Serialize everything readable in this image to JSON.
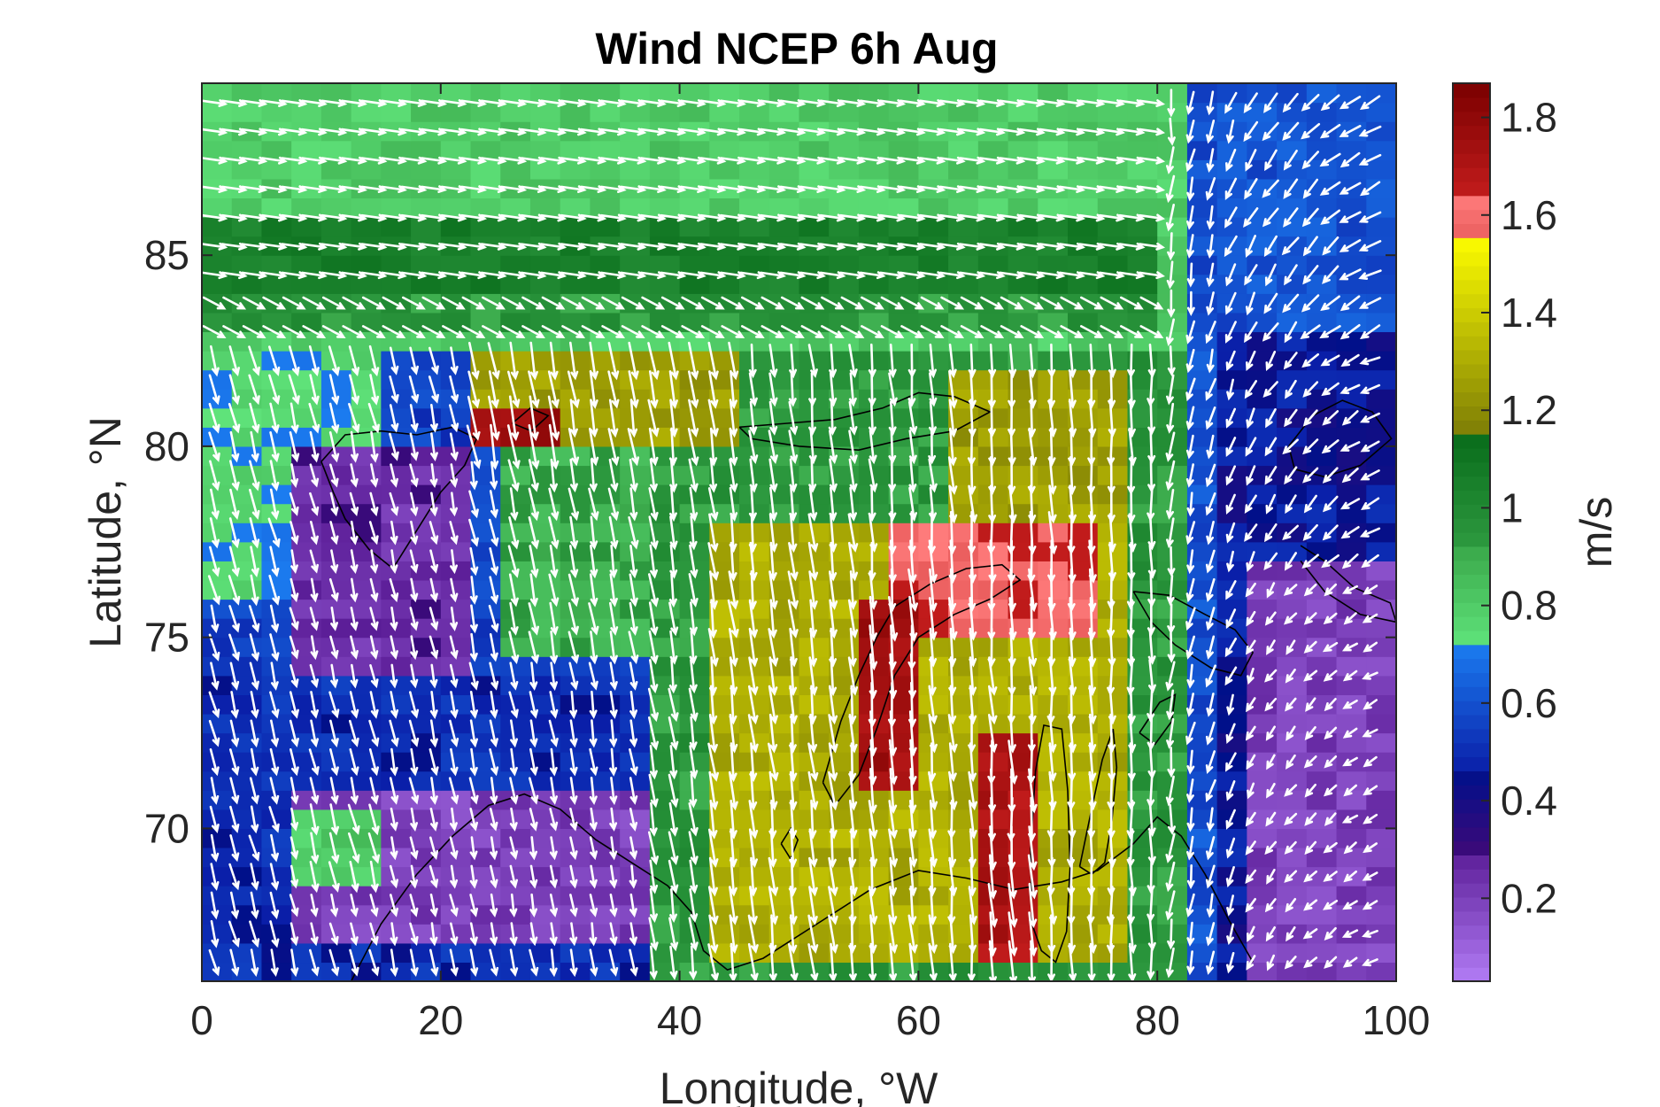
{
  "chart_data": {
    "type": "heatmap",
    "title": "Wind NCEP 6h Aug",
    "xlabel": "Longitude, °W",
    "ylabel": "Latitude, °N",
    "xlim": [
      0,
      100
    ],
    "ylim": [
      66,
      89.5
    ],
    "x_ticks": [
      {
        "value": 0,
        "label": "0"
      },
      {
        "value": 20,
        "label": "20"
      },
      {
        "value": 40,
        "label": "40"
      },
      {
        "value": 60,
        "label": "60"
      },
      {
        "value": 80,
        "label": "80"
      },
      {
        "value": 100,
        "label": "100"
      }
    ],
    "y_ticks": [
      {
        "value": 70,
        "label": "70"
      },
      {
        "value": 75,
        "label": "75"
      },
      {
        "value": 80,
        "label": "80"
      },
      {
        "value": 85,
        "label": "85"
      }
    ],
    "grid": false,
    "vectors": "white arrows showing wind direction, mostly southward at 0-80°W, converging in the east",
    "colorbar": {
      "label": "m/s",
      "range": [
        0.03,
        1.87
      ],
      "ticks": [
        {
          "value": 0.2,
          "label": "0.2"
        },
        {
          "value": 0.4,
          "label": "0.4"
        },
        {
          "value": 0.6,
          "label": "0.6"
        },
        {
          "value": 0.8,
          "label": "0.8"
        },
        {
          "value": 1.0,
          "label": "1"
        },
        {
          "value": 1.2,
          "label": "1.2"
        },
        {
          "value": 1.4,
          "label": "1.4"
        },
        {
          "value": 1.6,
          "label": "1.6"
        },
        {
          "value": 1.8,
          "label": "1.8"
        }
      ],
      "colormap": [
        {
          "from": 0.03,
          "to": 0.3,
          "low": "#b27cf5",
          "high": "#5a1c96"
        },
        {
          "from": 0.3,
          "to": 0.46,
          "low": "#3a0a7a",
          "high": "#00108a"
        },
        {
          "from": 0.46,
          "to": 0.72,
          "low": "#0a1ea8",
          "high": "#1b7cf0"
        },
        {
          "from": 0.72,
          "to": 0.92,
          "low": "#5fe37a",
          "high": "#3aa84a"
        },
        {
          "from": 0.92,
          "to": 1.14,
          "low": "#2e9a40",
          "high": "#0a6e1c"
        },
        {
          "from": 1.14,
          "to": 1.54,
          "low": "#7a7a06",
          "high": "#f8f800"
        },
        {
          "from": 1.54,
          "to": 1.64,
          "low": "#e85a5a",
          "high": "#ff7c7c"
        },
        {
          "from": 1.64,
          "to": 1.87,
          "low": "#c21c1c",
          "high": "#7a0000"
        }
      ]
    },
    "grid_spacing": {
      "lon": 2.5,
      "lat": 0.5
    },
    "speed_regions": [
      {
        "lon": [
          0,
          82.5
        ],
        "lat": [
          82.5,
          89.5
        ],
        "speed": 0.8
      },
      {
        "lon": [
          0,
          80
        ],
        "lat": [
          84,
          86
        ],
        "speed": 1.05
      },
      {
        "lon": [
          0,
          80
        ],
        "lat": [
          83,
          84
        ],
        "speed": 0.95
      },
      {
        "lon": [
          82.5,
          100
        ],
        "lat": [
          66,
          89.5
        ],
        "speed": 0.6
      },
      {
        "lon": [
          85,
          100
        ],
        "lat": [
          66,
          83
        ],
        "speed": 0.45
      },
      {
        "lon": [
          87.5,
          100
        ],
        "lat": [
          66,
          77
        ],
        "speed": 0.2
      },
      {
        "lon": [
          0,
          82.5
        ],
        "lat": [
          66,
          82.5
        ],
        "speed": 0.55
      },
      {
        "lon": [
          0,
          15
        ],
        "lat": [
          76,
          82.5
        ],
        "speed": 0.75
      },
      {
        "lon": [
          7.5,
          22.5
        ],
        "lat": [
          74,
          80
        ],
        "speed": 0.25
      },
      {
        "lon": [
          0,
          40
        ],
        "lat": [
          66,
          74
        ],
        "speed": 0.5
      },
      {
        "lon": [
          7.5,
          37.5
        ],
        "lat": [
          67,
          71
        ],
        "speed": 0.2
      },
      {
        "lon": [
          8.5,
          16
        ],
        "lat": [
          68.5,
          70.5
        ],
        "speed": 0.8
      },
      {
        "lon": [
          25,
          40
        ],
        "lat": [
          74.5,
          82.5
        ],
        "speed": 0.9
      },
      {
        "lon": [
          37.5,
          82.5
        ],
        "lat": [
          66,
          82.5
        ],
        "speed": 0.95
      },
      {
        "lon": [
          22.5,
          45
        ],
        "lat": [
          80,
          82.5
        ],
        "speed": 1.25
      },
      {
        "lon": [
          22.5,
          30
        ],
        "lat": [
          79.8,
          81
        ],
        "speed": 1.75
      },
      {
        "lon": [
          42.5,
          78
        ],
        "lat": [
          66.5,
          78
        ],
        "speed": 1.3
      },
      {
        "lon": [
          62.5,
          78
        ],
        "lat": [
          78,
          82
        ],
        "speed": 1.25
      },
      {
        "lon": [
          57.5,
          75
        ],
        "lat": [
          75,
          78
        ],
        "speed": 1.6
      },
      {
        "lon": [
          65,
          70
        ],
        "lat": [
          66.5,
          72.5
        ],
        "speed": 1.7
      },
      {
        "lon": [
          55,
          60
        ],
        "lat": [
          71,
          76
        ],
        "speed": 1.75
      }
    ]
  }
}
